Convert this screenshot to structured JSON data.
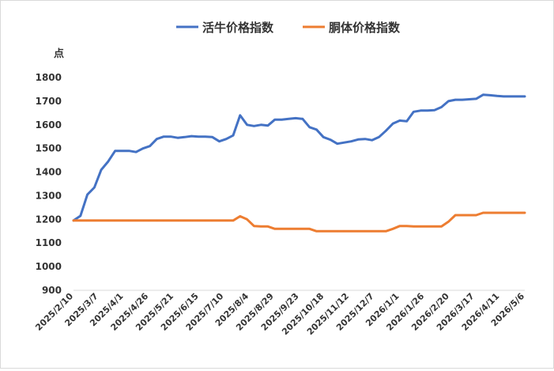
{
  "chart_data": {
    "type": "line",
    "title": "",
    "ylabel": "点",
    "xlabel": "",
    "ylim": [
      900,
      1800
    ],
    "yticks": [
      900,
      1000,
      1100,
      1200,
      1300,
      1400,
      1500,
      1600,
      1700,
      1800
    ],
    "grid": false,
    "legend": "top-center",
    "x": [
      "2025/2/10",
      "2025/2/17",
      "2025/2/24",
      "2025/3/3",
      "2025/3/10",
      "2025/3/17",
      "2025/3/24",
      "2025/3/31",
      "2025/4/7",
      "2025/4/14",
      "2025/4/21",
      "2025/4/28",
      "2025/5/5",
      "2025/5/12",
      "2025/5/19",
      "2025/5/26",
      "2025/6/2",
      "2025/6/9",
      "2025/6/16",
      "2025/6/23",
      "2025/6/30",
      "2025/7/7",
      "2025/7/14",
      "2025/7/21",
      "2025/7/28",
      "2025/8/4",
      "2025/8/11",
      "2025/8/18",
      "2025/8/25",
      "2025/9/1",
      "2025/9/8",
      "2025/9/15",
      "2025/9/22",
      "2025/9/29",
      "2025/10/6",
      "2025/10/13",
      "2025/10/20",
      "2025/10/27",
      "2025/11/3",
      "2025/11/10",
      "2025/11/17",
      "2025/11/24",
      "2025/12/1",
      "2025/12/8",
      "2025/12/15",
      "2025/12/22",
      "2025/12/29",
      "2026/1/5",
      "2026/1/12",
      "2026/1/19",
      "2026/1/26",
      "2026/2/2",
      "2026/2/9",
      "2026/2/16",
      "2026/2/23",
      "2026/3/2",
      "2026/3/9",
      "2026/3/16",
      "2026/3/23",
      "2026/3/30",
      "2026/4/6",
      "2026/4/13",
      "2026/4/20",
      "2026/4/27",
      "2026/5/4",
      "2026/5/11"
    ],
    "xtick_labels": [
      "2025/2/10",
      "2025/3/7",
      "2025/4/1",
      "2025/4/26",
      "2025/5/21",
      "2025/6/15",
      "2025/7/10",
      "2025/8/4",
      "2025/8/29",
      "2025/9/23",
      "2025/10/18",
      "2025/11/12",
      "2025/12/7",
      "2026/1/1",
      "2026/1/26",
      "2026/2/20",
      "2026/3/17",
      "2026/4/11",
      "2026/5/6"
    ],
    "series": [
      {
        "name": "活牛价格指数",
        "color": "#4472C4",
        "values": [
          1195,
          1215,
          1305,
          1335,
          1410,
          1445,
          1490,
          1490,
          1490,
          1485,
          1500,
          1510,
          1540,
          1550,
          1550,
          1545,
          1548,
          1552,
          1550,
          1550,
          1548,
          1530,
          1540,
          1555,
          1640,
          1600,
          1595,
          1600,
          1597,
          1622,
          1622,
          1625,
          1628,
          1625,
          1590,
          1580,
          1548,
          1537,
          1520,
          1525,
          1530,
          1538,
          1540,
          1535,
          1548,
          1575,
          1605,
          1618,
          1615,
          1655,
          1660,
          1660,
          1662,
          1675,
          1700,
          1706,
          1706,
          1708,
          1710,
          1727,
          1725,
          1722,
          1720,
          1720,
          1720,
          1720
        ]
      },
      {
        "name": "胴体价格指数",
        "color": "#ED7D31",
        "values": [
          1195,
          1195,
          1195,
          1195,
          1195,
          1195,
          1195,
          1195,
          1195,
          1195,
          1195,
          1195,
          1195,
          1195,
          1195,
          1195,
          1195,
          1195,
          1195,
          1195,
          1195,
          1195,
          1195,
          1195,
          1213,
          1200,
          1172,
          1170,
          1170,
          1160,
          1160,
          1160,
          1160,
          1160,
          1160,
          1150,
          1150,
          1150,
          1150,
          1150,
          1150,
          1150,
          1150,
          1150,
          1150,
          1150,
          1160,
          1172,
          1172,
          1170,
          1170,
          1170,
          1170,
          1170,
          1190,
          1218,
          1218,
          1218,
          1218,
          1228,
          1228,
          1228,
          1228,
          1228,
          1228,
          1228
        ]
      }
    ]
  }
}
